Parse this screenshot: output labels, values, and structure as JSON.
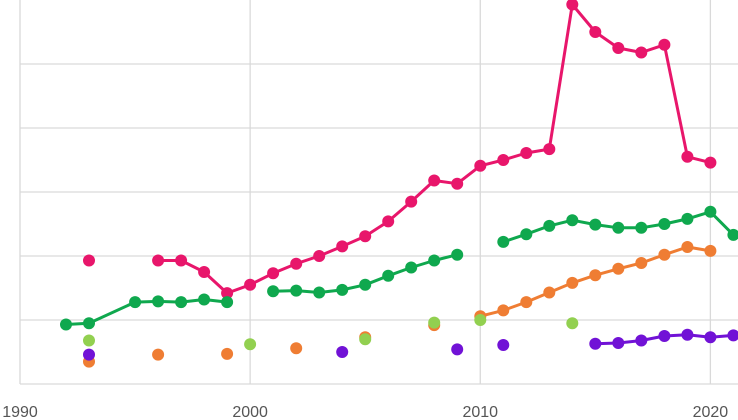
{
  "chart_data": {
    "type": "line",
    "title": "",
    "xlabel": "",
    "ylabel": "",
    "xlim": [
      1990,
      2021.2
    ],
    "ylim": [
      0,
      6
    ],
    "x_ticks": [
      1990,
      2000,
      2010,
      2020
    ],
    "x_tick_labels": [
      "1990",
      "2000",
      "2010",
      "2020"
    ],
    "y_gridlines": [
      1,
      2,
      3,
      4,
      5
    ],
    "grid": "horizontal and vertical",
    "legend": "none",
    "series": [
      {
        "color": "#e8166b",
        "points": [
          [
            1993,
            1.93
          ],
          [
            1996,
            1.93
          ],
          [
            1997,
            1.93
          ],
          [
            1998,
            1.75
          ],
          [
            1999,
            1.42
          ],
          [
            2000,
            1.55
          ],
          [
            2001,
            1.73
          ],
          [
            2002,
            1.88
          ],
          [
            2003,
            2.0
          ],
          [
            2004,
            2.15
          ],
          [
            2005,
            2.31
          ],
          [
            2006,
            2.54
          ],
          [
            2007,
            2.85
          ],
          [
            2008,
            3.18
          ],
          [
            2009,
            3.13
          ],
          [
            2010,
            3.41
          ],
          [
            2011,
            3.5
          ],
          [
            2012,
            3.61
          ],
          [
            2013,
            3.67
          ],
          [
            2014,
            5.93
          ],
          [
            2015,
            5.5
          ],
          [
            2016,
            5.25
          ],
          [
            2017,
            5.18
          ],
          [
            2018,
            5.3
          ],
          [
            2019,
            3.55
          ],
          [
            2020,
            3.46
          ]
        ],
        "segments": [
          [
            1996,
            2020
          ]
        ]
      },
      {
        "color": "#0fa84e",
        "points": [
          [
            1992,
            0.93
          ],
          [
            1993,
            0.95
          ],
          [
            1995,
            1.28
          ],
          [
            1996,
            1.29
          ],
          [
            1997,
            1.28
          ],
          [
            1998,
            1.32
          ],
          [
            1999,
            1.28
          ],
          [
            2001,
            1.45
          ],
          [
            2002,
            1.46
          ],
          [
            2003,
            1.43
          ],
          [
            2004,
            1.47
          ],
          [
            2005,
            1.55
          ],
          [
            2006,
            1.69
          ],
          [
            2007,
            1.82
          ],
          [
            2008,
            1.93
          ],
          [
            2009,
            2.02
          ],
          [
            2011,
            2.22
          ],
          [
            2012,
            2.34
          ],
          [
            2013,
            2.47
          ],
          [
            2014,
            2.56
          ],
          [
            2015,
            2.49
          ],
          [
            2016,
            2.44
          ],
          [
            2017,
            2.44
          ],
          [
            2018,
            2.5
          ],
          [
            2019,
            2.58
          ],
          [
            2020,
            2.69
          ],
          [
            2021,
            2.33
          ]
        ],
        "segments": [
          [
            1992,
            1999
          ],
          [
            2001,
            2009
          ],
          [
            2011,
            2021
          ]
        ]
      },
      {
        "color": "#ef7d33",
        "points": [
          [
            1993,
            0.35
          ],
          [
            1996,
            0.46
          ],
          [
            1999,
            0.47
          ],
          [
            2002,
            0.56
          ],
          [
            2005,
            0.73
          ],
          [
            2008,
            0.92
          ],
          [
            2010,
            1.06
          ],
          [
            2011,
            1.15
          ],
          [
            2012,
            1.28
          ],
          [
            2013,
            1.43
          ],
          [
            2014,
            1.58
          ],
          [
            2015,
            1.7
          ],
          [
            2016,
            1.8
          ],
          [
            2017,
            1.89
          ],
          [
            2018,
            2.02
          ],
          [
            2019,
            2.14
          ],
          [
            2020,
            2.08
          ]
        ],
        "segments": [
          [
            2010,
            2020
          ]
        ]
      },
      {
        "color": "#92d050",
        "points": [
          [
            1993,
            0.68
          ],
          [
            2000,
            0.62
          ],
          [
            2005,
            0.7
          ],
          [
            2008,
            0.96
          ],
          [
            2010,
            1.0
          ],
          [
            2014,
            0.95
          ]
        ],
        "segments": []
      },
      {
        "color": "#7112d6",
        "points": [
          [
            1993,
            0.46
          ],
          [
            2004,
            0.5
          ],
          [
            2009,
            0.54
          ],
          [
            2011,
            0.61
          ],
          [
            2015,
            0.63
          ],
          [
            2016,
            0.64
          ],
          [
            2017,
            0.68
          ],
          [
            2018,
            0.75
          ],
          [
            2019,
            0.77
          ],
          [
            2020,
            0.73
          ],
          [
            2021,
            0.76
          ]
        ],
        "segments": [
          [
            2015,
            2021
          ]
        ]
      }
    ]
  }
}
